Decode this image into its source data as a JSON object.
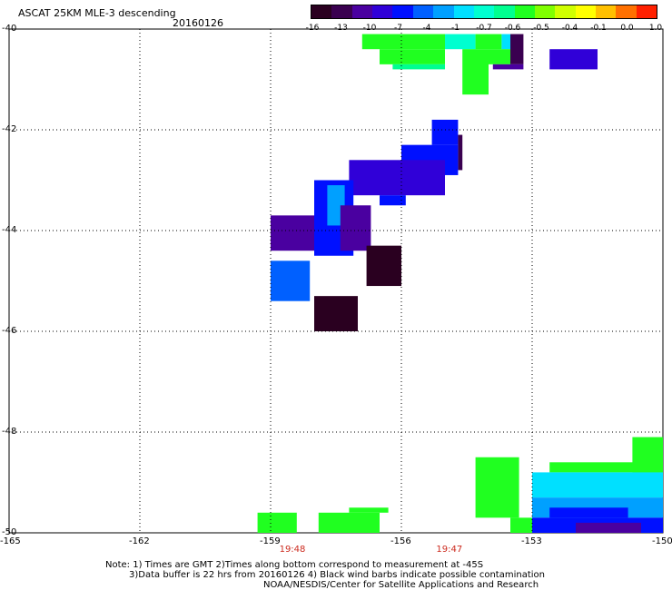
{
  "header": {
    "title": "ASCAT 25KM MLE-3 descending",
    "date": "20160126"
  },
  "colorbar": {
    "labels": [
      "-16",
      "-13",
      "-10",
      "-7",
      "-4",
      "-1",
      "-0.7",
      "-0.6",
      "-0.5",
      "-0.4",
      "-0.1",
      "0.0",
      "1.0"
    ],
    "colors": [
      "#2a0020",
      "#3a0050",
      "#4a00a0",
      "#3000d8",
      "#0010ff",
      "#0060ff",
      "#00a0ff",
      "#00e0ff",
      "#00ffd0",
      "#00ff90",
      "#20ff20",
      "#80ff00",
      "#d0ff00",
      "#ffff00",
      "#ffc000",
      "#ff7000",
      "#ff2000"
    ]
  },
  "axes": {
    "lat_labels": [
      "-40",
      "-42",
      "-44",
      "-46",
      "-48",
      "-50"
    ],
    "lon_labels": [
      "-165",
      "-162",
      "-159",
      "-156",
      "-153",
      "-150"
    ],
    "grid": "dotted"
  },
  "times": [
    {
      "label": "19:48",
      "lon": -158.5
    },
    {
      "label": "19:47",
      "lon": -154.9
    }
  ],
  "notes": {
    "line1": "Note: 1) Times are GMT 2)Times along bottom correspond to measurement at -45S",
    "line2": "3)Data buffer is 22 hrs from 20160126 4) Black wind barbs indicate possible contamination",
    "line3": "NOAA/NESDIS/Center for Satellite Applications and Research"
  },
  "chart_data": {
    "type": "heatmap",
    "lon_range": [
      -165,
      -150
    ],
    "lat_range": [
      -50,
      -40
    ],
    "cells": [
      {
        "lon0": -156.9,
        "lat0": -40.1,
        "lon1": -155.0,
        "lat1": -40.4,
        "color": "#20ff20"
      },
      {
        "lon0": -155.0,
        "lat0": -40.1,
        "lon1": -154.3,
        "lat1": -40.4,
        "color": "#00ffd0"
      },
      {
        "lon0": -154.3,
        "lat0": -40.1,
        "lon1": -153.7,
        "lat1": -40.4,
        "color": "#20ff20"
      },
      {
        "lon0": -153.7,
        "lat0": -40.1,
        "lon1": -153.5,
        "lat1": -40.4,
        "color": "#00e0ff"
      },
      {
        "lon0": -153.5,
        "lat0": -40.1,
        "lon1": -153.2,
        "lat1": -40.7,
        "color": "#3a0050"
      },
      {
        "lon0": -156.5,
        "lat0": -40.4,
        "lon1": -155.0,
        "lat1": -40.7,
        "color": "#20ff20"
      },
      {
        "lon0": -154.0,
        "lat0": -40.4,
        "lon1": -153.5,
        "lat1": -40.7,
        "color": "#20ff20"
      },
      {
        "lon0": -156.2,
        "lat0": -40.7,
        "lon1": -155.0,
        "lat1": -40.8,
        "color": "#00ff90"
      },
      {
        "lon0": -154.6,
        "lat0": -40.4,
        "lon1": -154.0,
        "lat1": -41.3,
        "color": "#20ff20"
      },
      {
        "lon0": -153.9,
        "lat0": -40.7,
        "lon1": -153.2,
        "lat1": -40.8,
        "color": "#4a00a0"
      },
      {
        "lon0": -152.6,
        "lat0": -40.4,
        "lon1": -151.5,
        "lat1": -40.8,
        "color": "#3000d8"
      },
      {
        "lon0": -155.3,
        "lat0": -41.8,
        "lon1": -154.7,
        "lat1": -42.3,
        "color": "#0010ff"
      },
      {
        "lon0": -154.7,
        "lat0": -42.1,
        "lon1": -154.6,
        "lat1": -42.8,
        "color": "#3a0050"
      },
      {
        "lon0": -156.0,
        "lat0": -42.3,
        "lon1": -154.7,
        "lat1": -42.9,
        "color": "#0010ff"
      },
      {
        "lon0": -157.2,
        "lat0": -42.6,
        "lon1": -155.0,
        "lat1": -43.3,
        "color": "#3000d8"
      },
      {
        "lon0": -156.5,
        "lat0": -43.3,
        "lon1": -155.9,
        "lat1": -43.5,
        "color": "#0010ff"
      },
      {
        "lon0": -158.0,
        "lat0": -43.0,
        "lon1": -157.1,
        "lat1": -44.5,
        "color": "#0010ff"
      },
      {
        "lon0": -157.7,
        "lat0": -43.1,
        "lon1": -157.3,
        "lat1": -43.9,
        "color": "#00a0ff"
      },
      {
        "lon0": -157.4,
        "lat0": -43.5,
        "lon1": -156.7,
        "lat1": -44.4,
        "color": "#4a00a0"
      },
      {
        "lon0": -159.0,
        "lat0": -43.7,
        "lon1": -158.0,
        "lat1": -44.4,
        "color": "#4a00a0"
      },
      {
        "lon0": -156.8,
        "lat0": -44.3,
        "lon1": -156.0,
        "lat1": -45.1,
        "color": "#2a0020"
      },
      {
        "lon0": -159.0,
        "lat0": -44.6,
        "lon1": -158.1,
        "lat1": -45.4,
        "color": "#0060ff"
      },
      {
        "lon0": -158.0,
        "lat0": -45.3,
        "lon1": -157.0,
        "lat1": -46.0,
        "color": "#2a0020"
      },
      {
        "lon0": -154.3,
        "lat0": -48.5,
        "lon1": -153.3,
        "lat1": -49.7,
        "color": "#20ff20"
      },
      {
        "lon0": -150.7,
        "lat0": -48.1,
        "lon1": -150.0,
        "lat1": -48.8,
        "color": "#20ff20"
      },
      {
        "lon0": -152.6,
        "lat0": -48.6,
        "lon1": -150.0,
        "lat1": -48.8,
        "color": "#20ff20"
      },
      {
        "lon0": -153.0,
        "lat0": -48.8,
        "lon1": -150.0,
        "lat1": -49.3,
        "color": "#00e0ff"
      },
      {
        "lon0": -153.0,
        "lat0": -49.3,
        "lon1": -150.0,
        "lat1": -49.7,
        "color": "#00a0ff"
      },
      {
        "lon0": -152.6,
        "lat0": -49.5,
        "lon1": -150.8,
        "lat1": -49.7,
        "color": "#0010ff"
      },
      {
        "lon0": -153.5,
        "lat0": -49.7,
        "lon1": -153.0,
        "lat1": -50.0,
        "color": "#20ff20"
      },
      {
        "lon0": -153.0,
        "lat0": -49.7,
        "lon1": -150.0,
        "lat1": -50.0,
        "color": "#0010ff"
      },
      {
        "lon0": -152.0,
        "lat0": -49.8,
        "lon1": -150.5,
        "lat1": -50.0,
        "color": "#4a00a0"
      },
      {
        "lon0": -159.3,
        "lat0": -49.6,
        "lon1": -158.4,
        "lat1": -50.0,
        "color": "#20ff20"
      },
      {
        "lon0": -157.9,
        "lat0": -49.6,
        "lon1": -156.5,
        "lat1": -50.0,
        "color": "#20ff20"
      },
      {
        "lon0": -157.2,
        "lat0": -49.5,
        "lon1": -156.3,
        "lat1": -49.6,
        "color": "#20ff20"
      }
    ]
  }
}
